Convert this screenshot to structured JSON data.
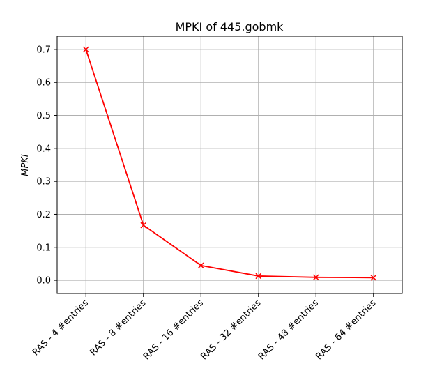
{
  "chart_data": {
    "type": "line",
    "title": "MPKI of 445.gobmk",
    "xlabel": "",
    "ylabel": "MPKI",
    "categories": [
      "RAS - 4 #entries",
      "RAS - 8 #entries",
      "RAS - 16 #entries",
      "RAS - 32 #entries",
      "RAS - 48 #entries",
      "RAS - 64 #entries"
    ],
    "series": [
      {
        "values": [
          0.7,
          0.167,
          0.045,
          0.013,
          0.009,
          0.008
        ],
        "color": "#ff0000",
        "marker": "x"
      }
    ],
    "yticks": [
      "0.0",
      "0.1",
      "0.2",
      "0.3",
      "0.4",
      "0.5",
      "0.6",
      "0.7"
    ],
    "ylim": [
      -0.04,
      0.74
    ],
    "grid": true,
    "legend": "none"
  }
}
